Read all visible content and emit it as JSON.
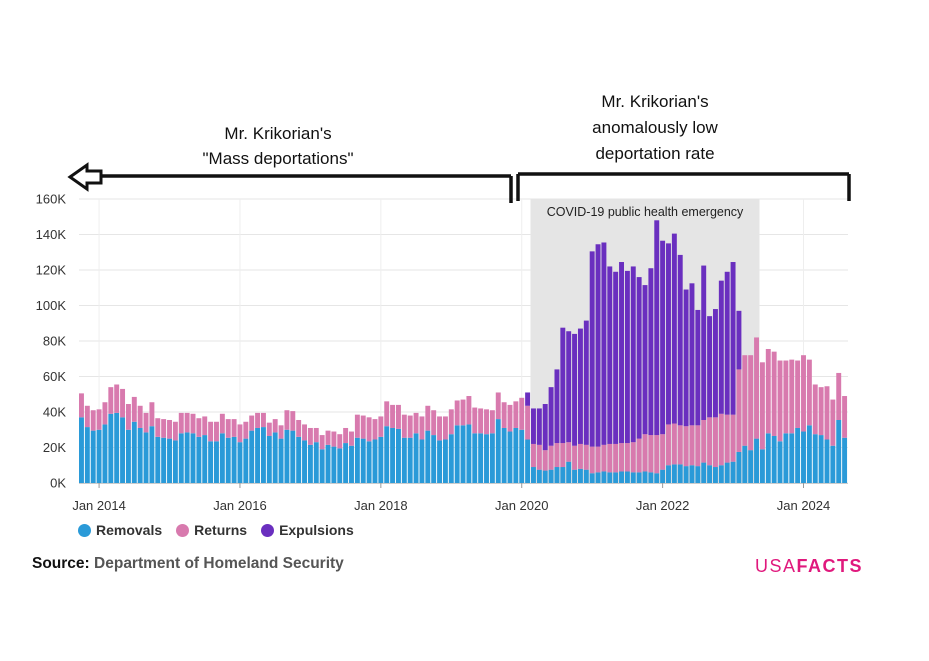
{
  "chart_data": {
    "type": "bar",
    "stacked": true,
    "title": "",
    "xlabel": "",
    "ylabel": "",
    "ylim": [
      0,
      160000
    ],
    "grid": true,
    "yticks": [
      {
        "value": 0,
        "label": "0K"
      },
      {
        "value": 20000,
        "label": "20K"
      },
      {
        "value": 40000,
        "label": "40K"
      },
      {
        "value": 60000,
        "label": "60K"
      },
      {
        "value": 80000,
        "label": "80K"
      },
      {
        "value": 100000,
        "label": "100K"
      },
      {
        "value": 120000,
        "label": "120K"
      },
      {
        "value": 140000,
        "label": "140K"
      },
      {
        "value": 160000,
        "label": "160K"
      }
    ],
    "xticks": [
      {
        "index": 3,
        "label": "Jan 2014"
      },
      {
        "index": 27,
        "label": "Jan 2016"
      },
      {
        "index": 51,
        "label": "Jan 2018"
      },
      {
        "index": 75,
        "label": "Jan 2020"
      },
      {
        "index": 99,
        "label": "Jan 2022"
      },
      {
        "index": 123,
        "label": "Jan 2024"
      }
    ],
    "categories_start": "Oct 2013",
    "categories_end": "Sep 2024",
    "legend_position": "bottom-left",
    "series": [
      {
        "name": "Removals",
        "color": "#2a9ad8",
        "values": [
          37000,
          31500,
          29500,
          30000,
          33000,
          39000,
          39500,
          37000,
          30000,
          34500,
          31000,
          28500,
          32000,
          26000,
          25500,
          25000,
          24000,
          28000,
          28500,
          28000,
          26000,
          27000,
          23500,
          23500,
          28000,
          25500,
          26000,
          23000,
          25000,
          29500,
          31000,
          31500,
          26500,
          28500,
          25000,
          30000,
          29500,
          26000,
          24000,
          21500,
          23000,
          19000,
          21500,
          20500,
          19500,
          22500,
          21000,
          25500,
          25000,
          23500,
          24500,
          26000,
          32000,
          31000,
          30500,
          25500,
          25500,
          28000,
          24500,
          29500,
          27000,
          24000,
          24500,
          27500,
          32500,
          32500,
          33000,
          28000,
          28000,
          27500,
          28000,
          36000,
          31000,
          29000,
          31000,
          30000,
          24500,
          9000,
          7500,
          7000,
          7500,
          9000,
          9000,
          12000,
          7500,
          8000,
          7500,
          5500,
          6000,
          6500,
          6000,
          6000,
          6500,
          6500,
          6000,
          6000,
          6500,
          6000,
          5500,
          7500,
          10000,
          10500,
          10500,
          9500,
          10000,
          9500,
          11500,
          10000,
          9000,
          10000,
          11500,
          12000,
          17500,
          21000,
          18500,
          25000,
          19000,
          28000,
          26500,
          23500,
          28000,
          28000,
          31000,
          29000,
          32500,
          27500,
          27000,
          24500,
          21000,
          35500,
          25500
        ]
      },
      {
        "name": "Returns",
        "color": "#d87aae",
        "values": [
          13500,
          12000,
          11500,
          11500,
          12500,
          15000,
          16000,
          16000,
          14500,
          14000,
          12500,
          11000,
          13500,
          10500,
          10500,
          10500,
          10500,
          11500,
          11000,
          11000,
          10500,
          10500,
          11000,
          11000,
          11000,
          10500,
          10000,
          10000,
          9500,
          8500,
          8500,
          8000,
          7500,
          7500,
          7500,
          11000,
          11000,
          9500,
          9000,
          9500,
          8000,
          8000,
          8000,
          8500,
          8000,
          8500,
          8000,
          13000,
          13000,
          13500,
          11500,
          11500,
          14000,
          13000,
          13500,
          13000,
          12500,
          11500,
          13000,
          14000,
          14000,
          13500,
          13000,
          14000,
          14000,
          14500,
          16000,
          14500,
          14000,
          14000,
          13000,
          15000,
          14500,
          15000,
          15000,
          18000,
          19000,
          13000,
          14000,
          11500,
          13500,
          13500,
          13500,
          11000,
          13500,
          14000,
          14000,
          15000,
          14500,
          15000,
          16000,
          16000,
          16000,
          16000,
          17000,
          19000,
          21000,
          21000,
          21500,
          20000,
          23000,
          23000,
          22000,
          22500,
          22500,
          23000,
          24000,
          27000,
          28000,
          29000,
          27000,
          26500,
          46500,
          51000,
          53500,
          57000,
          49000,
          47500,
          47500,
          45500,
          41000,
          41500,
          38000,
          43000,
          37000,
          28000,
          27000,
          30000,
          26000,
          26500,
          23500
        ]
      },
      {
        "name": "Expulsions",
        "color": "#6a2fbf",
        "values": [
          0,
          0,
          0,
          0,
          0,
          0,
          0,
          0,
          0,
          0,
          0,
          0,
          0,
          0,
          0,
          0,
          0,
          0,
          0,
          0,
          0,
          0,
          0,
          0,
          0,
          0,
          0,
          0,
          0,
          0,
          0,
          0,
          0,
          0,
          0,
          0,
          0,
          0,
          0,
          0,
          0,
          0,
          0,
          0,
          0,
          0,
          0,
          0,
          0,
          0,
          0,
          0,
          0,
          0,
          0,
          0,
          0,
          0,
          0,
          0,
          0,
          0,
          0,
          0,
          0,
          0,
          0,
          0,
          0,
          0,
          0,
          0,
          0,
          0,
          0,
          0,
          7500,
          20000,
          20500,
          26000,
          33000,
          41500,
          65000,
          62500,
          63000,
          65000,
          70000,
          110000,
          114000,
          114000,
          100000,
          97000,
          102000,
          97000,
          99000,
          91000,
          84000,
          94000,
          121000,
          109000,
          102000,
          107000,
          96000,
          77000,
          80000,
          65000,
          87000,
          57000,
          61000,
          75000,
          80500,
          86000,
          33000,
          0,
          0,
          0,
          0,
          0,
          0,
          0,
          0,
          0,
          0,
          0,
          0,
          0,
          0,
          0,
          0,
          0,
          0
        ]
      }
    ],
    "annotations": {
      "shaded_label": "COVID-19 public health emergency",
      "shaded_start": "Mar 2020",
      "shaded_end": "May 2023",
      "left_bracket_lines": [
        "Mr. Krikorian's",
        "\"Mass deportations\""
      ],
      "right_bracket_lines": [
        "Mr. Krikorian's",
        "anomalously low",
        "deportation rate"
      ]
    }
  },
  "legend": [
    {
      "label": "Removals",
      "color": "#2a9ad8"
    },
    {
      "label": "Returns",
      "color": "#d87aae"
    },
    {
      "label": "Expulsions",
      "color": "#6a2fbf"
    }
  ],
  "source": {
    "label": "Source:",
    "text": "Department of Homeland Security"
  },
  "logo": {
    "part1": "USA",
    "part2": "FACTS",
    "color": "#e0197d"
  }
}
